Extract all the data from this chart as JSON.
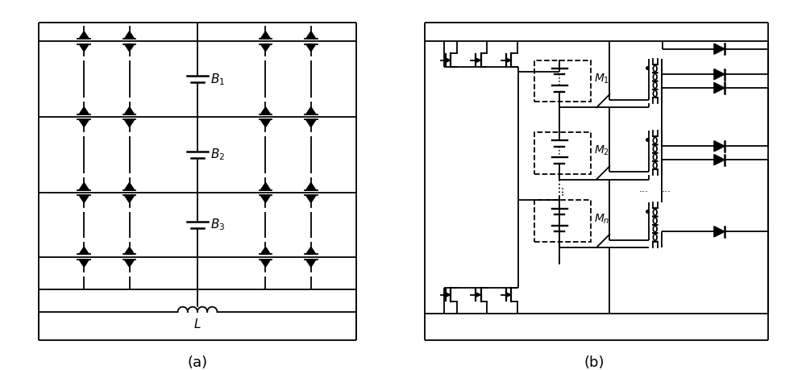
{
  "fig_width": 10.0,
  "fig_height": 4.59,
  "bg_color": "#ffffff",
  "line_color": "#000000",
  "lw": 1.3,
  "label_a": "(a)",
  "label_b": "(b)",
  "battery_labels": [
    "$B_1$",
    "$B_2$",
    "$B_3$"
  ],
  "module_labels": [
    "$M_1$",
    "$M_2$",
    "$M_n$"
  ],
  "inductor_label": "$L$",
  "font_size": 11
}
